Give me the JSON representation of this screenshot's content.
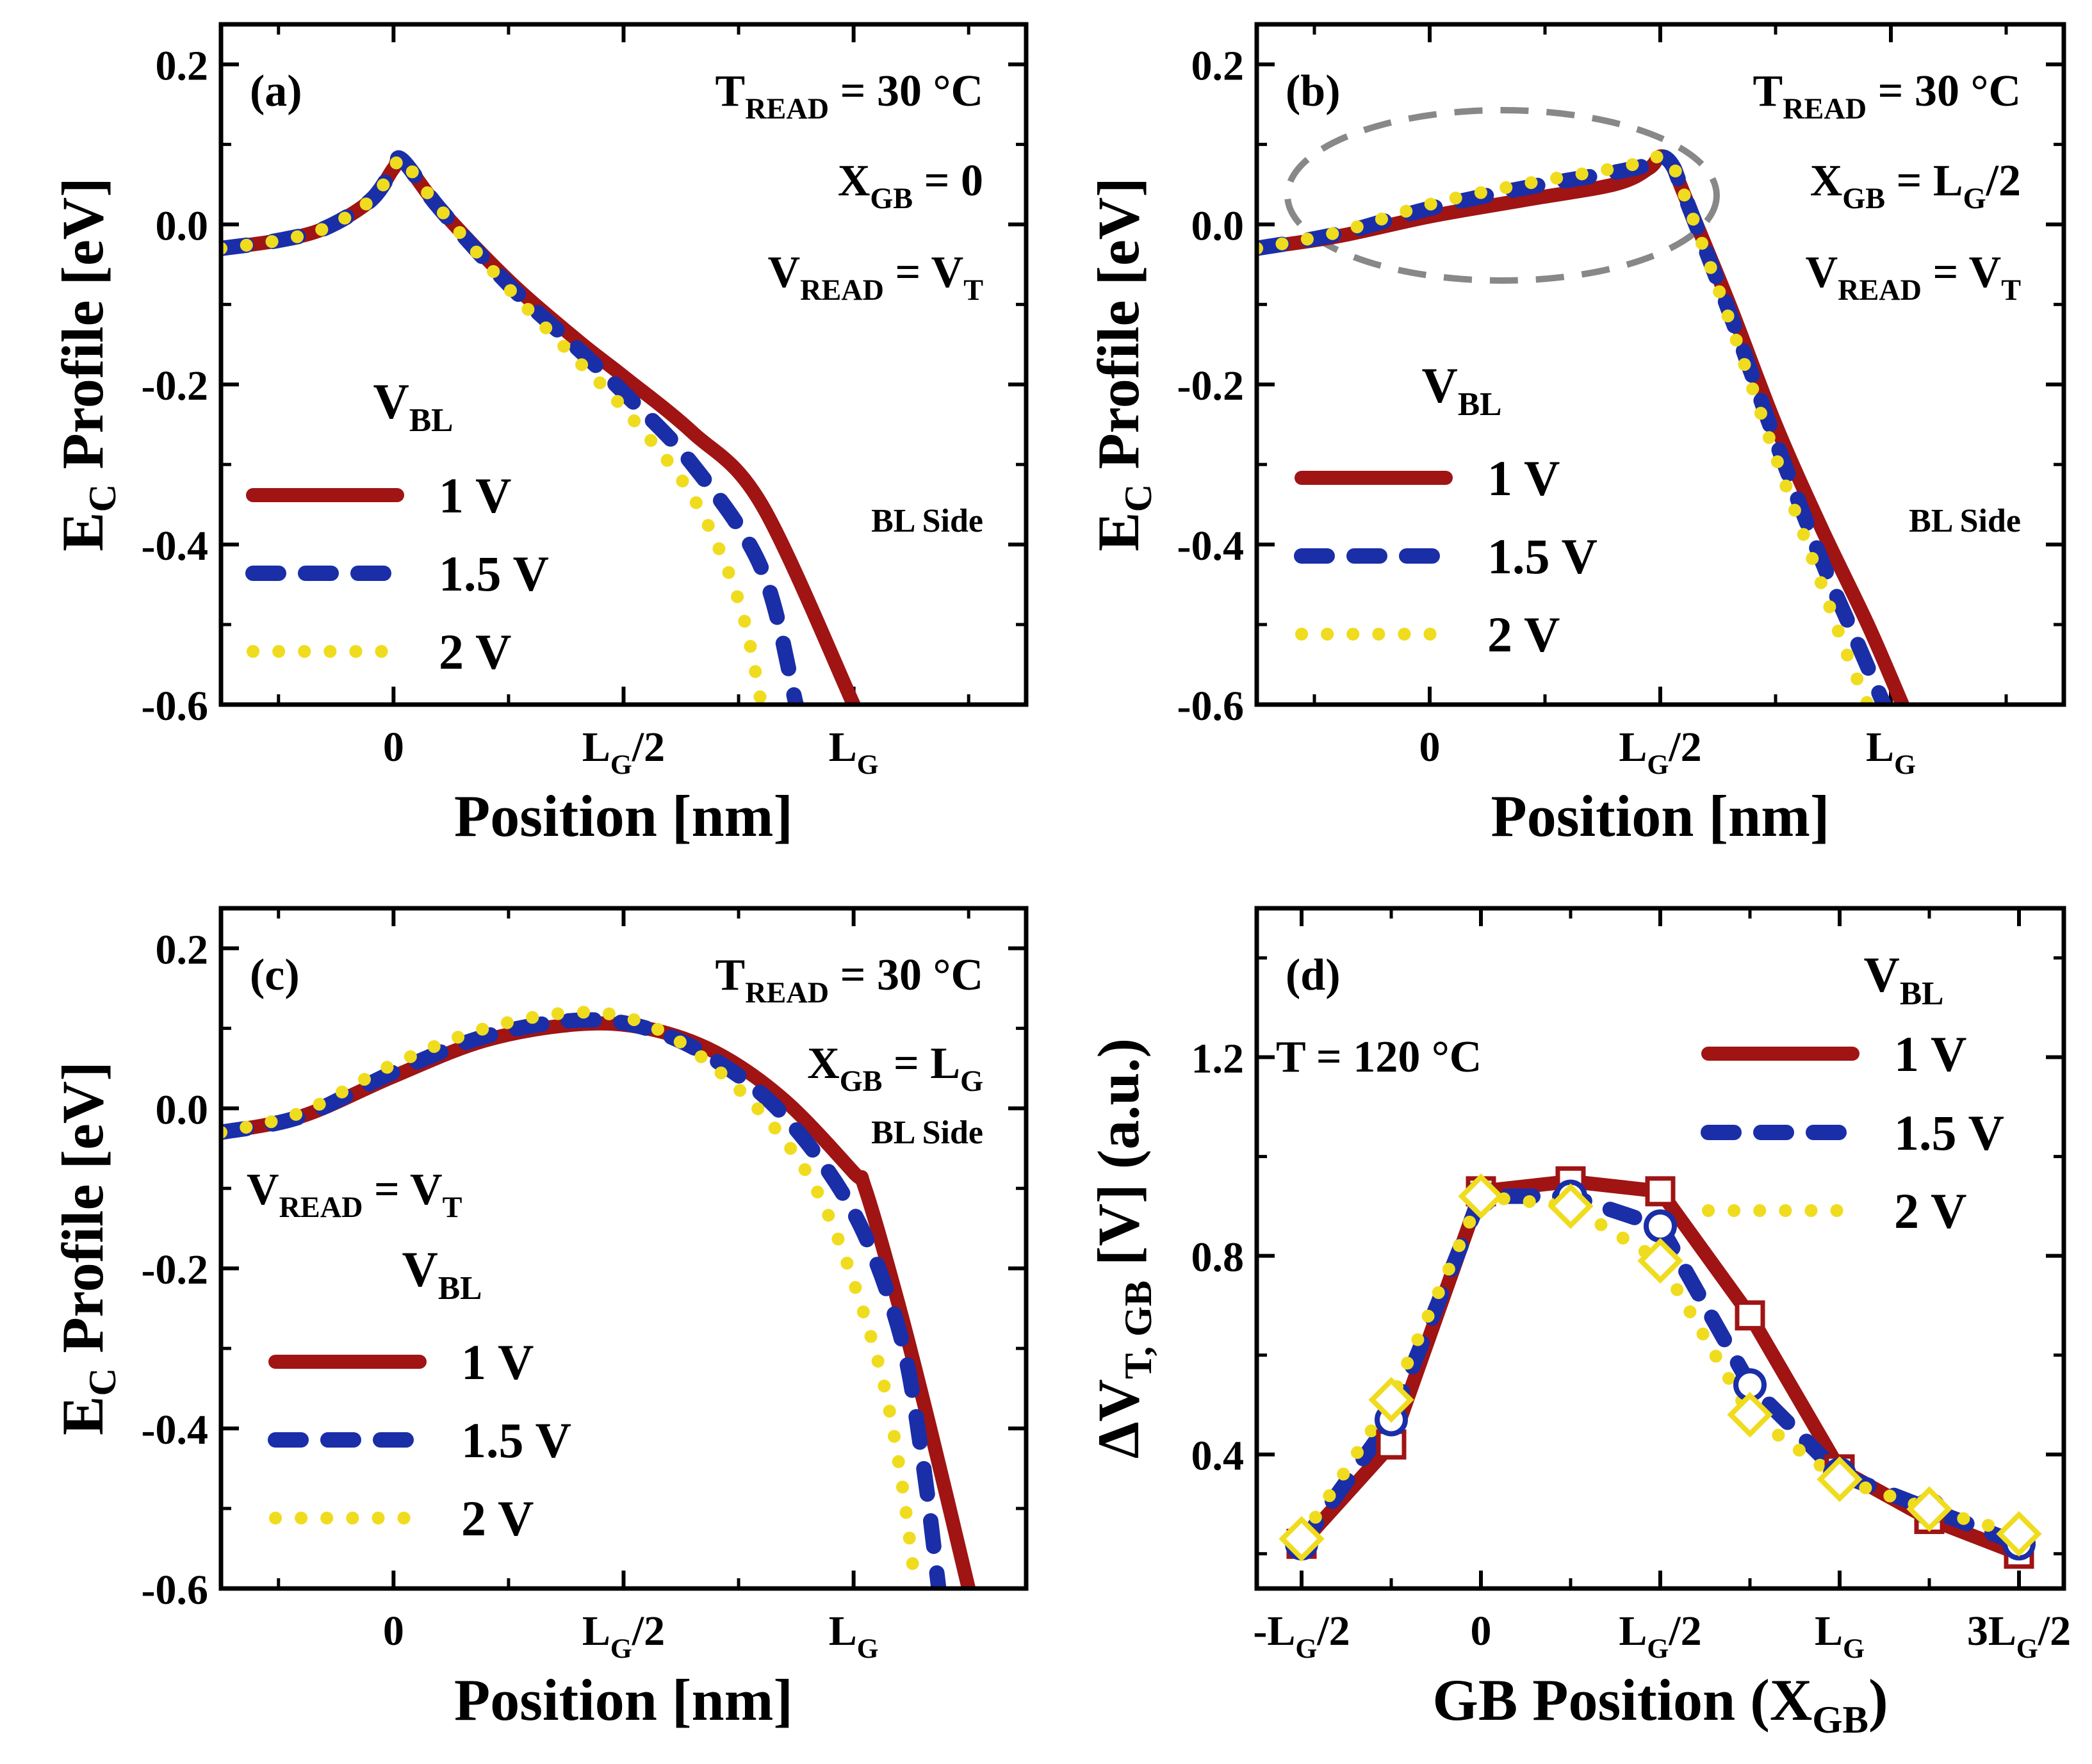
{
  "figure": {
    "panels": [
      {
        "tag": "(a)",
        "ylabel": {
          "main": "E",
          "sub": "C",
          "rest": " Profile [eV]"
        },
        "xlabel": "Position [nm]",
        "yticks": [
          "0.2",
          "0.0",
          "-0.2",
          "-0.4",
          "-0.6"
        ],
        "xticks": [
          {
            "main": "0",
            "sub": "",
            "tail": ""
          },
          {
            "main": "L",
            "sub": "G",
            "tail": "/2"
          },
          {
            "main": "L",
            "sub": "G",
            "tail": ""
          }
        ],
        "annotations": [
          {
            "main": "T",
            "sub": "READ",
            "tail": " = 30 °C"
          },
          {
            "main": "X",
            "sub": "GB",
            "tail": " = 0"
          },
          {
            "main": "V",
            "sub": "READ",
            "tail": " = V",
            "sub2": "T"
          }
        ],
        "side_note": "BL Side",
        "legend_title": {
          "main": "V",
          "sub": "BL"
        },
        "legend": [
          "1 V",
          "1.5 V",
          "2 V"
        ]
      },
      {
        "tag": "(b)",
        "ylabel": {
          "main": "E",
          "sub": "C",
          "rest": " Profile [eV]"
        },
        "xlabel": "Position [nm]",
        "yticks": [
          "0.2",
          "0.0",
          "-0.2",
          "-0.4",
          "-0.6"
        ],
        "xticks": [
          {
            "main": "0",
            "sub": "",
            "tail": ""
          },
          {
            "main": "L",
            "sub": "G",
            "tail": "/2"
          },
          {
            "main": "L",
            "sub": "G",
            "tail": ""
          }
        ],
        "annotations": [
          {
            "main": "T",
            "sub": "READ",
            "tail": " = 30 °C"
          },
          {
            "main": "X",
            "sub": "GB",
            "tail": " = L",
            "sub2": "G",
            "tail2": "/2"
          },
          {
            "main": "V",
            "sub": "READ",
            "tail": " = V",
            "sub2": "T"
          }
        ],
        "side_note": "BL Side",
        "legend_title": {
          "main": "V",
          "sub": "BL"
        },
        "legend": [
          "1 V",
          "1.5 V",
          "2 V"
        ]
      },
      {
        "tag": "(c)",
        "ylabel": {
          "main": "E",
          "sub": "C",
          "rest": " Profile [eV]"
        },
        "xlabel": "Position [nm]",
        "yticks": [
          "0.2",
          "0.0",
          "-0.2",
          "-0.4",
          "-0.6"
        ],
        "xticks": [
          {
            "main": "0",
            "sub": "",
            "tail": ""
          },
          {
            "main": "L",
            "sub": "G",
            "tail": "/2"
          },
          {
            "main": "L",
            "sub": "G",
            "tail": ""
          }
        ],
        "annotations": [
          {
            "main": "T",
            "sub": "READ",
            "tail": " = 30 °C"
          },
          {
            "main": "X",
            "sub": "GB",
            "tail": " = L",
            "sub2": "G"
          },
          {
            "main": "V",
            "sub": "READ",
            "tail": " = V",
            "sub2": "T"
          }
        ],
        "side_note": "BL Side",
        "legend_title": {
          "main": "V",
          "sub": "BL"
        },
        "legend": [
          "1 V",
          "1.5 V",
          "2 V"
        ]
      },
      {
        "tag": "(d)",
        "ylabel": {
          "main": "ΔV",
          "sub": "T, GB",
          "rest": " [V] (a.u.)"
        },
        "xlabel": {
          "main": "GB Position (X",
          "sub": "GB",
          "tail": ")"
        },
        "yticks": [
          "1.2",
          "0.8",
          "0.4"
        ],
        "xticks": [
          {
            "main": "-L",
            "sub": "G",
            "tail": "/2"
          },
          {
            "main": "0",
            "sub": "",
            "tail": ""
          },
          {
            "main": "L",
            "sub": "G",
            "tail": "/2"
          },
          {
            "main": "L",
            "sub": "G",
            "tail": ""
          },
          {
            "main": "3L",
            "sub": "G",
            "tail": "/2"
          }
        ],
        "annotations": [
          {
            "main": "T = 120 °C",
            "sub": "",
            "tail": ""
          }
        ],
        "legend_title": {
          "main": "V",
          "sub": "BL"
        },
        "legend": [
          "1 V",
          "1.5 V",
          "2 V"
        ]
      }
    ]
  },
  "colors": {
    "v1": "#a01414",
    "v15": "#1a2ea8",
    "v2": "#f0dc1e",
    "highlight": "#888888"
  },
  "chart_data": [
    {
      "type": "line",
      "title": "(a)",
      "xlabel": "Position [nm]",
      "ylabel": "E_C Profile [eV]",
      "xlim": [
        -0.75,
        2.75
      ],
      "ylim": [
        -0.6,
        0.25
      ],
      "x_units": "L_G/2",
      "series": [
        {
          "name": "1 V",
          "x": [
            -0.75,
            -0.5,
            -0.3,
            -0.1,
            0,
            0.04,
            0.2,
            0.5,
            0.8,
            1.0,
            1.3,
            1.6,
            2.0
          ],
          "y": [
            -0.03,
            -0.02,
            -0.005,
            0.03,
            0.07,
            0.08,
            0.02,
            -0.07,
            -0.145,
            -0.19,
            -0.26,
            -0.35,
            -0.6
          ]
        },
        {
          "name": "1.5 V",
          "x": [
            -0.75,
            -0.5,
            -0.3,
            -0.1,
            0,
            0.04,
            0.2,
            0.5,
            0.8,
            1.0,
            1.3,
            1.6,
            1.75
          ],
          "y": [
            -0.03,
            -0.02,
            -0.005,
            0.03,
            0.07,
            0.08,
            0.02,
            -0.075,
            -0.155,
            -0.21,
            -0.3,
            -0.43,
            -0.6
          ]
        },
        {
          "name": "2 V",
          "x": [
            -0.75,
            -0.5,
            -0.3,
            -0.1,
            0,
            0.04,
            0.2,
            0.5,
            0.8,
            1.0,
            1.3,
            1.5,
            1.6
          ],
          "y": [
            -0.03,
            -0.02,
            -0.005,
            0.03,
            0.07,
            0.08,
            0.02,
            -0.08,
            -0.17,
            -0.23,
            -0.34,
            -0.47,
            -0.6
          ]
        }
      ]
    },
    {
      "type": "line",
      "title": "(b)",
      "xlabel": "Position [nm]",
      "ylabel": "E_C Profile [eV]",
      "xlim": [
        -0.75,
        2.75
      ],
      "ylim": [
        -0.6,
        0.25
      ],
      "x_units": "L_G/2",
      "series": [
        {
          "name": "1 V",
          "x": [
            -0.75,
            -0.4,
            0,
            0.4,
            0.8,
            0.95,
            1.0,
            1.05,
            1.1,
            1.3,
            1.5,
            1.7,
            1.9,
            2.05
          ],
          "y": [
            -0.03,
            -0.015,
            0.01,
            0.03,
            0.05,
            0.07,
            0.085,
            0.075,
            0.04,
            -0.1,
            -0.25,
            -0.38,
            -0.5,
            -0.6
          ]
        },
        {
          "name": "1.5 V",
          "x": [
            -0.75,
            -0.4,
            0,
            0.4,
            0.8,
            0.95,
            1.0,
            1.05,
            1.1,
            1.3,
            1.5,
            1.7,
            1.85,
            1.97
          ],
          "y": [
            -0.03,
            -0.012,
            0.02,
            0.045,
            0.065,
            0.075,
            0.085,
            0.075,
            0.04,
            -0.11,
            -0.27,
            -0.42,
            -0.52,
            -0.6
          ]
        },
        {
          "name": "2 V",
          "x": [
            -0.75,
            -0.4,
            0,
            0.4,
            0.8,
            0.95,
            1.0,
            1.05,
            1.1,
            1.3,
            1.5,
            1.7,
            1.8,
            1.9
          ],
          "y": [
            -0.03,
            -0.01,
            0.025,
            0.05,
            0.07,
            0.08,
            0.085,
            0.075,
            0.04,
            -0.12,
            -0.29,
            -0.45,
            -0.53,
            -0.6
          ]
        }
      ]
    },
    {
      "type": "line",
      "title": "(c)",
      "xlabel": "Position [nm]",
      "ylabel": "E_C Profile [eV]",
      "xlim": [
        -0.75,
        2.75
      ],
      "ylim": [
        -0.6,
        0.25
      ],
      "x_units": "L_G/2",
      "series": [
        {
          "name": "1 V",
          "x": [
            -0.75,
            -0.4,
            0,
            0.4,
            0.8,
            1.1,
            1.4,
            1.7,
            2.0,
            2.05,
            2.2,
            2.35,
            2.5
          ],
          "y": [
            -0.03,
            -0.01,
            0.04,
            0.085,
            0.105,
            0.1,
            0.07,
            0.01,
            -0.08,
            -0.1,
            -0.25,
            -0.42,
            -0.6
          ]
        },
        {
          "name": "1.5 V",
          "x": [
            -0.75,
            -0.4,
            0,
            0.4,
            0.8,
            1.1,
            1.4,
            1.7,
            2.0,
            2.2,
            2.3,
            2.37
          ],
          "y": [
            -0.03,
            -0.01,
            0.045,
            0.09,
            0.11,
            0.1,
            0.06,
            -0.01,
            -0.13,
            -0.28,
            -0.44,
            -0.6
          ]
        },
        {
          "name": "2 V",
          "x": [
            -0.75,
            -0.4,
            0,
            0.4,
            0.8,
            1.1,
            1.4,
            1.7,
            1.9,
            2.1,
            2.2,
            2.27
          ],
          "y": [
            -0.03,
            -0.005,
            0.055,
            0.1,
            0.12,
            0.105,
            0.05,
            -0.04,
            -0.14,
            -0.31,
            -0.45,
            -0.6
          ]
        }
      ]
    },
    {
      "type": "line",
      "title": "(d)",
      "xlabel": "GB Position (X_GB)",
      "ylabel": "ΔV_T,GB [V] (a.u.)",
      "xlim": [
        -1.25,
        3.25
      ],
      "ylim": [
        0.13,
        1.5
      ],
      "x_units": "L_G/2",
      "series": [
        {
          "name": "1 V",
          "marker": "square",
          "x": [
            -1,
            -0.5,
            0,
            0.5,
            1,
            1.5,
            2,
            2.5,
            3
          ],
          "y": [
            0.22,
            0.42,
            0.93,
            0.95,
            0.93,
            0.68,
            0.37,
            0.27,
            0.2
          ]
        },
        {
          "name": "1.5 V",
          "marker": "circle",
          "x": [
            -1,
            -0.5,
            0,
            0.5,
            1,
            1.5,
            2,
            2.5,
            3
          ],
          "y": [
            0.22,
            0.47,
            0.92,
            0.92,
            0.86,
            0.54,
            0.36,
            0.29,
            0.22
          ]
        },
        {
          "name": "2 V",
          "marker": "diamond",
          "x": [
            -1,
            -0.5,
            0,
            0.5,
            1,
            1.5,
            2,
            2.5,
            3
          ],
          "y": [
            0.23,
            0.51,
            0.92,
            0.9,
            0.79,
            0.48,
            0.35,
            0.29,
            0.24
          ]
        }
      ]
    }
  ]
}
